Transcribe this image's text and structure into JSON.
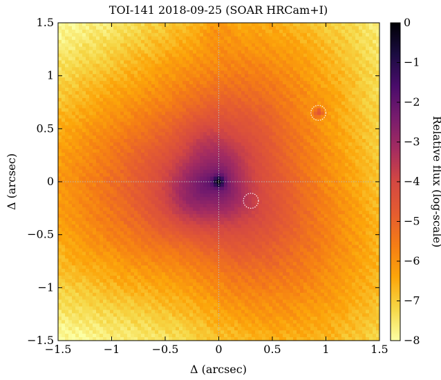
{
  "chart_data": {
    "type": "heatmap",
    "title": "TOI-141 2018-09-25 (SOAR HRCam+I)",
    "xlabel": "Δ (arcsec)",
    "ylabel": "Δ (arcsec)",
    "xlim": [
      -1.5,
      1.5
    ],
    "ylim": [
      -1.5,
      1.5
    ],
    "x_ticks": [
      -1.5,
      -1,
      -0.5,
      0,
      0.5,
      1,
      1.5
    ],
    "y_ticks": [
      -1.5,
      -1,
      -0.5,
      0,
      0.5,
      1,
      1.5
    ],
    "x_tick_labels": [
      "−1.5",
      "−1",
      "−0.5",
      "0",
      "0.5",
      "1",
      "1.5"
    ],
    "y_tick_labels": [
      "−1.5",
      "−1",
      "−0.5",
      "0",
      "0.5",
      "1",
      "1.5"
    ],
    "colorbar": {
      "label": "Relative flux (log-scale)",
      "range": [
        -8,
        0
      ],
      "ticks": [
        0,
        -1,
        -2,
        -3,
        -4,
        -5,
        -6,
        -7,
        -8
      ],
      "tick_labels": [
        "0",
        "−1",
        "−2",
        "−3",
        "−4",
        "−5",
        "−6",
        "−7",
        "−8"
      ],
      "colormap": [
        "#fcffa4",
        "#f6d746",
        "#fca50a",
        "#f57d15",
        "#e55c30",
        "#d44842",
        "#a52c60",
        "#781c6d",
        "#4a0c6b",
        "#1b0c41",
        "#000004"
      ]
    },
    "crosshair": {
      "x": 0,
      "y": 0,
      "style": "dotted"
    },
    "markers": [
      {
        "x": 0.93,
        "y": 0.65,
        "radius_arcsec": 0.07,
        "style": "dotted circle"
      },
      {
        "x": 0.3,
        "y": -0.18,
        "radius_arcsec": 0.07,
        "style": "dotted circle"
      }
    ],
    "features": [
      {
        "kind": "primary",
        "x": 0,
        "y": 0,
        "peak_log_flux": 0
      },
      {
        "kind": "secondary",
        "x": 0.93,
        "y": 0.65,
        "peak_log_flux": -4.2
      }
    ]
  }
}
